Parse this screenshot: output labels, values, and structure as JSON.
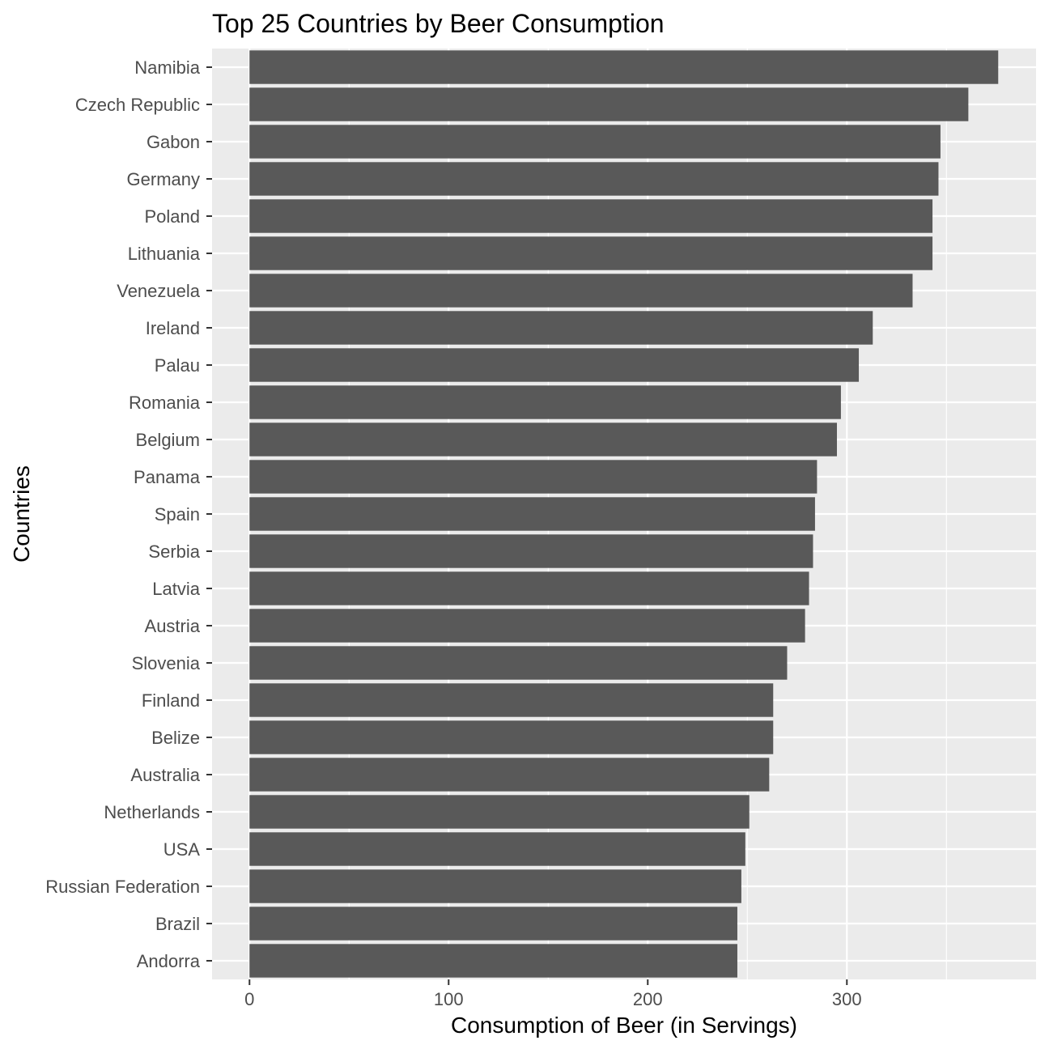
{
  "chart_data": {
    "type": "bar",
    "orientation": "horizontal",
    "title": "Top 25 Countries by Beer Consumption",
    "xlabel": "Consumption of Beer (in Servings)",
    "ylabel": "Countries",
    "xlim": [
      -18.8,
      395
    ],
    "xticks": [
      0,
      100,
      200,
      300
    ],
    "grid": true,
    "legend": "none",
    "colors": {
      "bar": "#595959",
      "panel_background": "#EBEBEB",
      "grid": "#FFFFFF",
      "tick_label": "#4D4D4D",
      "text": "#000000"
    },
    "categories": [
      "Namibia",
      "Czech Republic",
      "Gabon",
      "Germany",
      "Poland",
      "Lithuania",
      "Venezuela",
      "Ireland",
      "Palau",
      "Romania",
      "Belgium",
      "Panama",
      "Spain",
      "Serbia",
      "Latvia",
      "Austria",
      "Slovenia",
      "Finland",
      "Belize",
      "Australia",
      "Netherlands",
      "USA",
      "Russian Federation",
      "Brazil",
      "Andorra"
    ],
    "values": [
      376,
      361,
      347,
      346,
      343,
      343,
      333,
      313,
      306,
      297,
      295,
      285,
      284,
      283,
      281,
      279,
      270,
      263,
      263,
      261,
      251,
      249,
      247,
      245,
      245
    ]
  }
}
